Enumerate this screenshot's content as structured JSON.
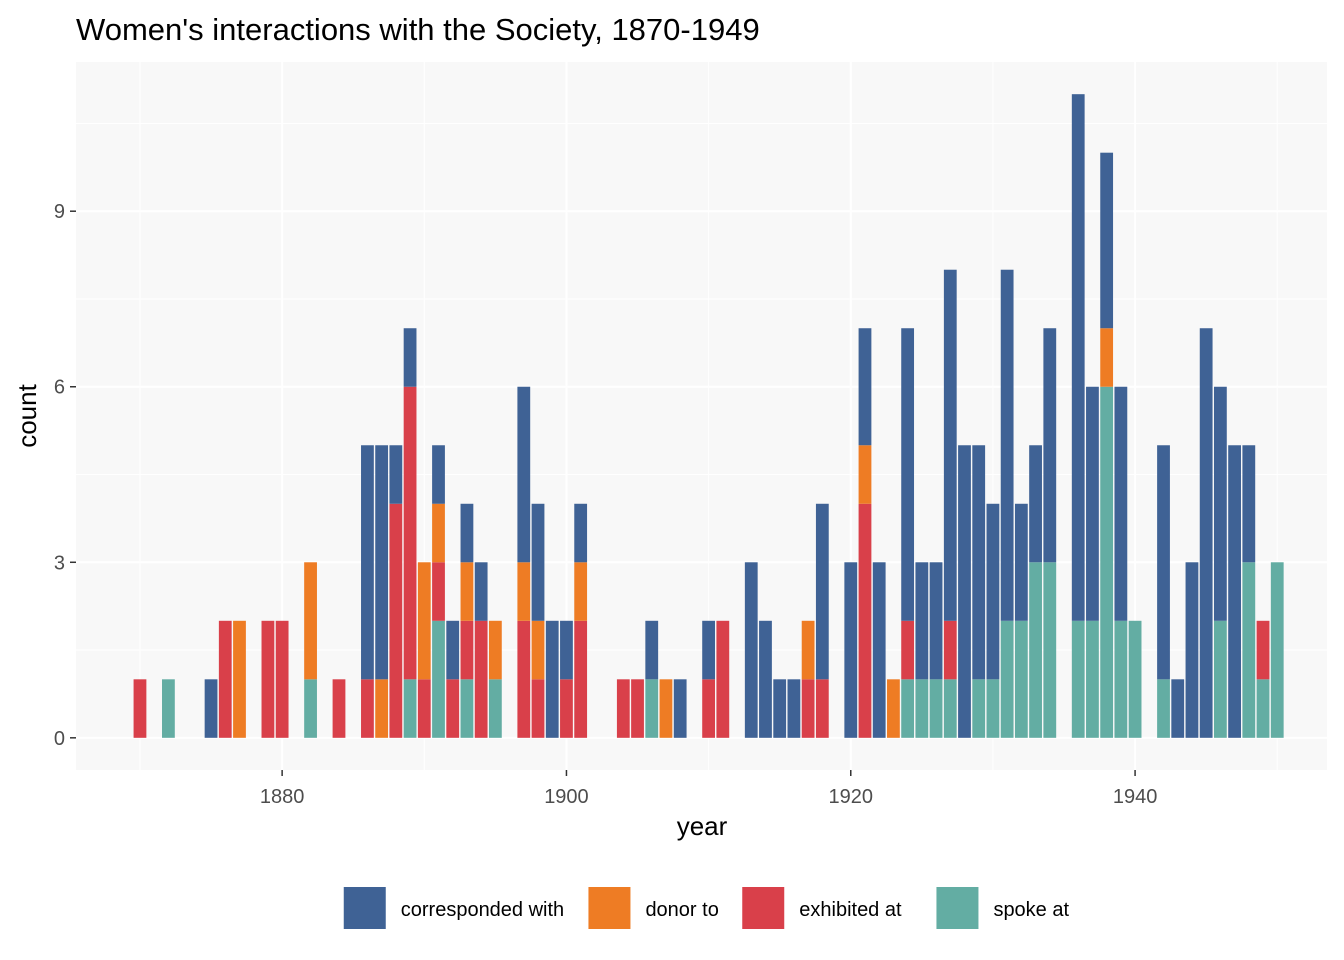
{
  "chart_data": {
    "type": "bar",
    "stacked": true,
    "title": "Women's interactions with the Society, 1870-1949",
    "xlabel": "year",
    "ylabel": "count",
    "xlim": [
      1865.5,
      1953.5
    ],
    "ylim": [
      -0.55,
      11.55
    ],
    "x_ticks": [
      1880,
      1900,
      1920,
      1940
    ],
    "y_ticks": [
      0,
      3,
      6,
      9
    ],
    "grid": true,
    "legend_position": "bottom",
    "series": [
      {
        "name": "corresponded with",
        "color": "#3f6295",
        "values": [
          [
            1875,
            1
          ],
          [
            1886,
            4
          ],
          [
            1887,
            4
          ],
          [
            1888,
            1
          ],
          [
            1889,
            1
          ],
          [
            1891,
            1
          ],
          [
            1892,
            1
          ],
          [
            1893,
            1
          ],
          [
            1894,
            1
          ],
          [
            1897,
            3
          ],
          [
            1898,
            2
          ],
          [
            1899,
            2
          ],
          [
            1900,
            1
          ],
          [
            1901,
            1
          ],
          [
            1906,
            1
          ],
          [
            1908,
            1
          ],
          [
            1910,
            1
          ],
          [
            1913,
            3
          ],
          [
            1914,
            2
          ],
          [
            1915,
            1
          ],
          [
            1916,
            1
          ],
          [
            1918,
            3
          ],
          [
            1920,
            3
          ],
          [
            1921,
            2
          ],
          [
            1922,
            3
          ],
          [
            1924,
            5
          ],
          [
            1925,
            2
          ],
          [
            1926,
            2
          ],
          [
            1927,
            6
          ],
          [
            1928,
            5
          ],
          [
            1929,
            4
          ],
          [
            1930,
            3
          ],
          [
            1931,
            6
          ],
          [
            1932,
            2
          ],
          [
            1933,
            2
          ],
          [
            1934,
            4
          ],
          [
            1936,
            9
          ],
          [
            1937,
            4
          ],
          [
            1938,
            3
          ],
          [
            1939,
            4
          ],
          [
            1942,
            4
          ],
          [
            1943,
            1
          ],
          [
            1944,
            3
          ],
          [
            1945,
            7
          ],
          [
            1946,
            4
          ],
          [
            1947,
            5
          ],
          [
            1948,
            2
          ]
        ]
      },
      {
        "name": "donor to",
        "color": "#ee7c24",
        "values": [
          [
            1877,
            2
          ],
          [
            1882,
            2
          ],
          [
            1887,
            1
          ],
          [
            1890,
            2
          ],
          [
            1891,
            1
          ],
          [
            1893,
            1
          ],
          [
            1895,
            1
          ],
          [
            1897,
            1
          ],
          [
            1898,
            1
          ],
          [
            1901,
            1
          ],
          [
            1907,
            1
          ],
          [
            1917,
            1
          ],
          [
            1921,
            1
          ],
          [
            1923,
            1
          ],
          [
            1938,
            1
          ]
        ]
      },
      {
        "name": "exhibited at",
        "color": "#d9404a",
        "values": [
          [
            1870,
            1
          ],
          [
            1876,
            2
          ],
          [
            1879,
            2
          ],
          [
            1880,
            2
          ],
          [
            1884,
            1
          ],
          [
            1886,
            1
          ],
          [
            1888,
            4
          ],
          [
            1889,
            5
          ],
          [
            1890,
            1
          ],
          [
            1891,
            1
          ],
          [
            1892,
            1
          ],
          [
            1893,
            1
          ],
          [
            1894,
            2
          ],
          [
            1897,
            2
          ],
          [
            1898,
            1
          ],
          [
            1900,
            1
          ],
          [
            1901,
            2
          ],
          [
            1904,
            1
          ],
          [
            1905,
            1
          ],
          [
            1910,
            1
          ],
          [
            1911,
            2
          ],
          [
            1917,
            1
          ],
          [
            1918,
            1
          ],
          [
            1921,
            4
          ],
          [
            1924,
            1
          ],
          [
            1927,
            1
          ],
          [
            1949,
            1
          ]
        ]
      },
      {
        "name": "spoke at",
        "color": "#63ada3",
        "values": [
          [
            1872,
            1
          ],
          [
            1882,
            1
          ],
          [
            1889,
            1
          ],
          [
            1891,
            2
          ],
          [
            1893,
            1
          ],
          [
            1895,
            1
          ],
          [
            1906,
            1
          ],
          [
            1924,
            1
          ],
          [
            1925,
            1
          ],
          [
            1926,
            1
          ],
          [
            1927,
            1
          ],
          [
            1929,
            1
          ],
          [
            1930,
            1
          ],
          [
            1931,
            2
          ],
          [
            1932,
            2
          ],
          [
            1933,
            3
          ],
          [
            1934,
            3
          ],
          [
            1936,
            2
          ],
          [
            1937,
            2
          ],
          [
            1938,
            6
          ],
          [
            1939,
            2
          ],
          [
            1940,
            2
          ],
          [
            1942,
            1
          ],
          [
            1946,
            2
          ],
          [
            1948,
            3
          ],
          [
            1949,
            1
          ],
          [
            1950,
            3
          ]
        ]
      }
    ]
  }
}
